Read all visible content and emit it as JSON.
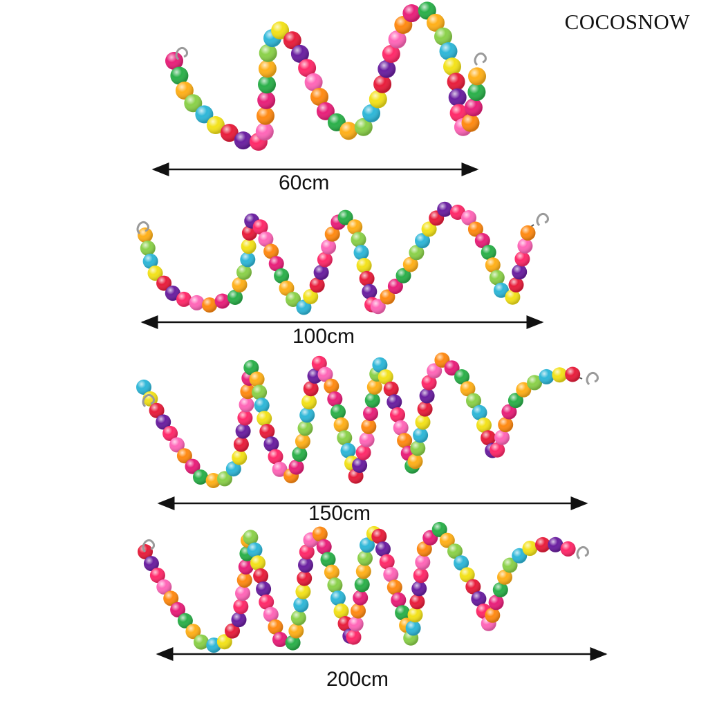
{
  "brand": "COCOSNOW",
  "strands": [
    {
      "label": "60cm",
      "accent": "#111111"
    },
    {
      "label": "100cm",
      "accent": "#111111"
    },
    {
      "label": "150cm",
      "accent": "#111111"
    },
    {
      "label": "200cm",
      "accent": "#111111"
    }
  ],
  "bead_colors": [
    "#e8207a",
    "#ff2a6a",
    "#f3e21a",
    "#ffb01a",
    "#ff8a12",
    "#6a1fa0",
    "#2fb7d8",
    "#2bb04a",
    "#ff66b8",
    "#e81e3c",
    "#8bd14a"
  ],
  "icons": [
    "metal-hook-icon",
    "double-arrow-icon"
  ]
}
